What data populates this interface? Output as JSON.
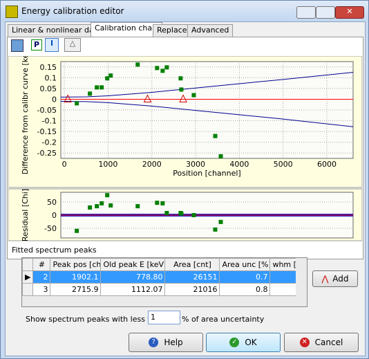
{
  "window": {
    "title": "Energy calibration editor"
  },
  "tabs": [
    "Linear & nonlinear data",
    "Calibration chart",
    "Replace",
    "Advanced"
  ],
  "toolbar": {
    "p": "P"
  },
  "chart_data": [
    {
      "type": "scatter",
      "xlabel": "Position [channel]",
      "ylabel": "Difference from calibr curve [keV]",
      "xlim": [
        -80,
        6600
      ],
      "ylim": [
        -0.275,
        0.175
      ],
      "xticks": [
        0,
        1000,
        2000,
        3000,
        4000,
        5000,
        6000
      ],
      "yticks": [
        -0.25,
        -0.2,
        -0.15,
        -0.1,
        -0.05,
        0,
        0.05,
        0.1,
        0.15
      ],
      "grid": true,
      "series": [
        {
          "color": "#008000",
          "marker": "square",
          "x": [
            285,
            585,
            744,
            854,
            981,
            1060,
            1677,
            2120,
            2247,
            2342,
            2658,
            2674,
            2959,
            3449,
            3576
          ],
          "values": [
            -0.019,
            0.026,
            0.055,
            0.055,
            0.097,
            0.11,
            0.161,
            0.145,
            0.132,
            0.148,
            0.097,
            0.045,
            0.019,
            -0.171,
            -0.265
          ]
        },
        {
          "color": "#cc0000",
          "marker": "triangle",
          "x": [
            80,
            1902.1,
            2715.9
          ],
          "values": [
            0,
            0,
            0
          ]
        }
      ],
      "lines": [
        {
          "color": "#ff0000",
          "x": [
            -80,
            6600
          ],
          "values": [
            0,
            0
          ]
        },
        {
          "color": "#000090",
          "x": [
            -80,
            500,
            1000,
            2000,
            3000,
            4000,
            5000,
            6600
          ],
          "values": [
            0.01,
            0.011,
            0.016,
            0.032,
            0.052,
            0.072,
            0.092,
            0.125
          ]
        },
        {
          "color": "#000090",
          "x": [
            -80,
            500,
            1000,
            2000,
            3000,
            4000,
            5000,
            6600
          ],
          "values": [
            -0.01,
            -0.011,
            -0.016,
            -0.032,
            -0.052,
            -0.072,
            -0.092,
            -0.128
          ]
        }
      ]
    },
    {
      "type": "scatter",
      "ylabel": "Residual [Chi]",
      "xlim": [
        -80,
        6600
      ],
      "ylim": [
        -87,
        87
      ],
      "yticks": [
        -50,
        0,
        50
      ],
      "grid": true,
      "series": [
        {
          "color": "#008000",
          "marker": "square",
          "x": [
            285,
            585,
            744,
            854,
            981,
            1060,
            1677,
            2120,
            2247,
            2342,
            2658,
            2674,
            2959,
            3449,
            3576
          ],
          "values": [
            -60,
            29,
            34,
            45,
            76,
            37,
            34,
            47,
            45,
            8,
            8,
            6,
            0,
            -55,
            -26
          ]
        }
      ],
      "lines": [
        {
          "color": "#2020c0",
          "width": 4,
          "x": [
            -80,
            6600
          ],
          "values": [
            0,
            0
          ]
        },
        {
          "color": "#ff0000",
          "width": 1,
          "x": [
            -80,
            6600
          ],
          "values": [
            0,
            0
          ]
        }
      ]
    }
  ],
  "peaks": {
    "label": "Fitted spectrum peaks",
    "columns": [
      "#",
      "Peak pos [ch]",
      "Old peak E [keV]",
      "Area [cnt]",
      "Area unc [%]",
      "whm [c"
    ],
    "rows": [
      [
        "2",
        "1902.1",
        "778.80",
        "26151",
        "0.7"
      ],
      [
        "3",
        "2715.9",
        "1112.07",
        "21016",
        "0.8"
      ]
    ],
    "add": "Add"
  },
  "filter": {
    "before": "Show spectrum peaks with less than",
    "value": "1",
    "after": "% of area uncertainty"
  },
  "buttons": {
    "help": "Help",
    "ok": "OK",
    "cancel": "Cancel"
  }
}
